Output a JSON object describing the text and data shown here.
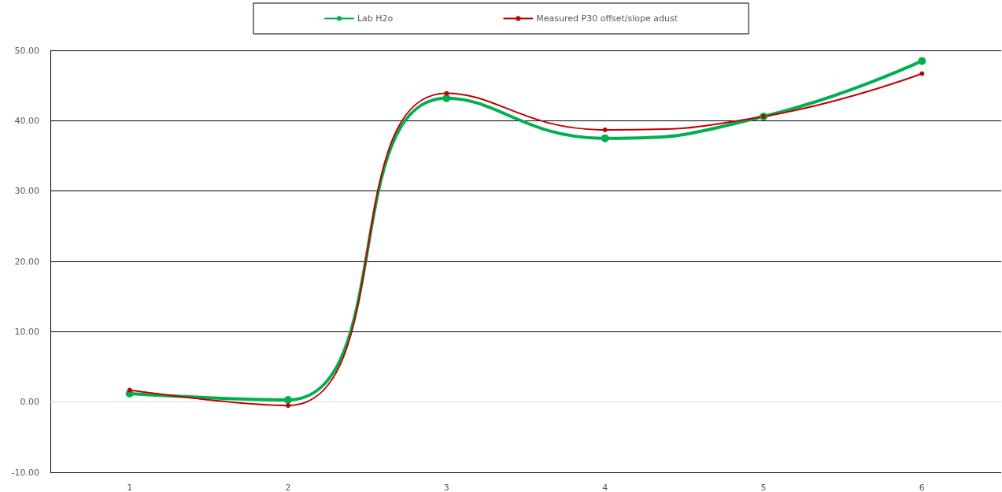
{
  "chart_data": {
    "type": "line",
    "categories": [
      "1",
      "2",
      "3",
      "4",
      "5",
      "6"
    ],
    "series": [
      {
        "name": "Lab H2o",
        "color": "#00b050",
        "values": [
          1.2,
          0.3,
          43.2,
          37.5,
          40.6,
          48.5
        ]
      },
      {
        "name": "Measured P30 offset/slope adust",
        "color": "#c00000",
        "values": [
          1.7,
          -0.5,
          43.9,
          38.7,
          40.6,
          46.7
        ]
      }
    ],
    "ylim": [
      -10,
      50
    ],
    "yticks": [
      {
        "value": -10,
        "label": "-10.00"
      },
      {
        "value": 0,
        "label": "0.00"
      },
      {
        "value": 10,
        "label": "10.00"
      },
      {
        "value": 20,
        "label": "20.00"
      },
      {
        "value": 30,
        "label": "30.00"
      },
      {
        "value": 40,
        "label": "40.00"
      },
      {
        "value": 50,
        "label": "50.00"
      }
    ],
    "grid": "y",
    "legend": "top",
    "marker": "circle"
  }
}
